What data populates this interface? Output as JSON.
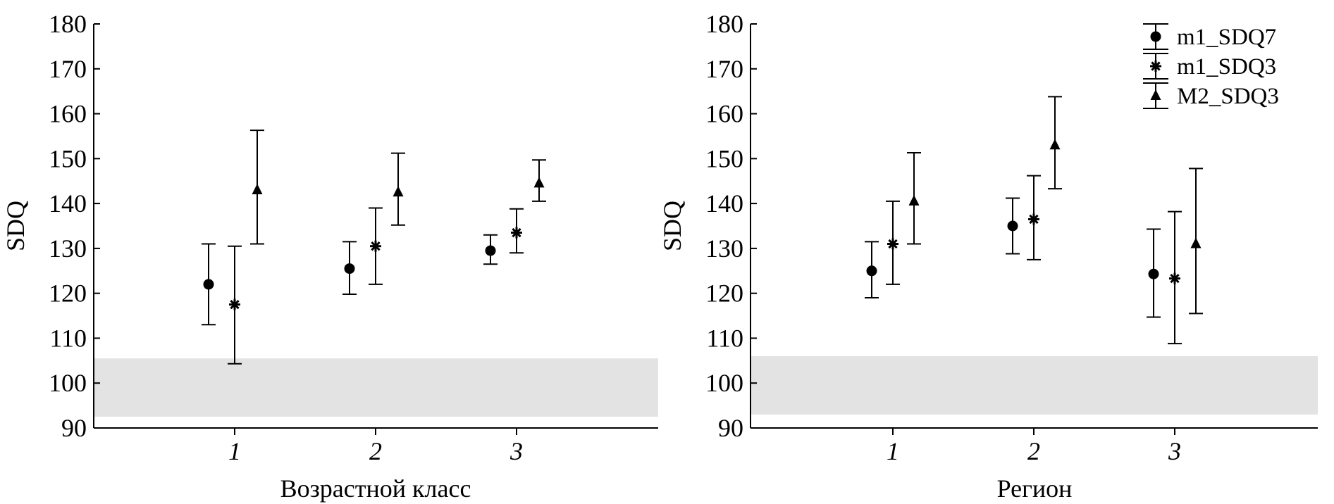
{
  "colors": {
    "marker": "#000000",
    "axis": "#000000",
    "reference_band": "#e3e3e3"
  },
  "chart_data": [
    {
      "type": "scatter",
      "subtype": "means with error bars",
      "xlabel": "Возрастной класс",
      "ylabel": "SDQ",
      "categories": [
        "1",
        "2",
        "3"
      ],
      "ylim": [
        90,
        180
      ],
      "yticks": [
        90,
        100,
        110,
        120,
        130,
        140,
        150,
        160,
        170,
        180
      ],
      "reference_band": [
        92.5,
        105.5
      ],
      "legend": null,
      "series": [
        {
          "name": "m1_SDQ7",
          "marker": "circle",
          "values": [
            122,
            125.5,
            129.5
          ],
          "lower": [
            113,
            119.8,
            126.5
          ],
          "upper": [
            131,
            131.5,
            133
          ]
        },
        {
          "name": "m1_SDQ3",
          "marker": "asterisk",
          "values": [
            117.5,
            130.5,
            133.5
          ],
          "lower": [
            104.3,
            122,
            129
          ],
          "upper": [
            130.5,
            139,
            138.8
          ]
        },
        {
          "name": "M2_SDQ3",
          "marker": "triangle",
          "values": [
            143,
            142.5,
            144.5
          ],
          "lower": [
            131,
            135.2,
            140.5
          ],
          "upper": [
            156.3,
            151.2,
            149.7
          ]
        }
      ]
    },
    {
      "type": "scatter",
      "subtype": "means with error bars",
      "xlabel": "Регион",
      "ylabel": "SDQ",
      "categories": [
        "1",
        "2",
        "3"
      ],
      "ylim": [
        90,
        180
      ],
      "yticks": [
        90,
        100,
        110,
        120,
        130,
        140,
        150,
        160,
        170,
        180
      ],
      "reference_band": [
        93,
        106
      ],
      "legend": "top-right",
      "series": [
        {
          "name": "m1_SDQ7",
          "marker": "circle",
          "values": [
            125,
            135,
            124.3
          ],
          "lower": [
            119,
            128.8,
            114.7
          ],
          "upper": [
            131.5,
            141.2,
            134.3
          ]
        },
        {
          "name": "m1_SDQ3",
          "marker": "asterisk",
          "values": [
            131,
            136.5,
            123.3
          ],
          "lower": [
            122,
            127.5,
            108.8
          ],
          "upper": [
            140.5,
            146.2,
            138.2
          ]
        },
        {
          "name": "M2_SDQ3",
          "marker": "triangle",
          "values": [
            140.5,
            153,
            131
          ],
          "lower": [
            131,
            143.3,
            115.5
          ],
          "upper": [
            151.3,
            163.8,
            147.8
          ]
        }
      ]
    }
  ]
}
